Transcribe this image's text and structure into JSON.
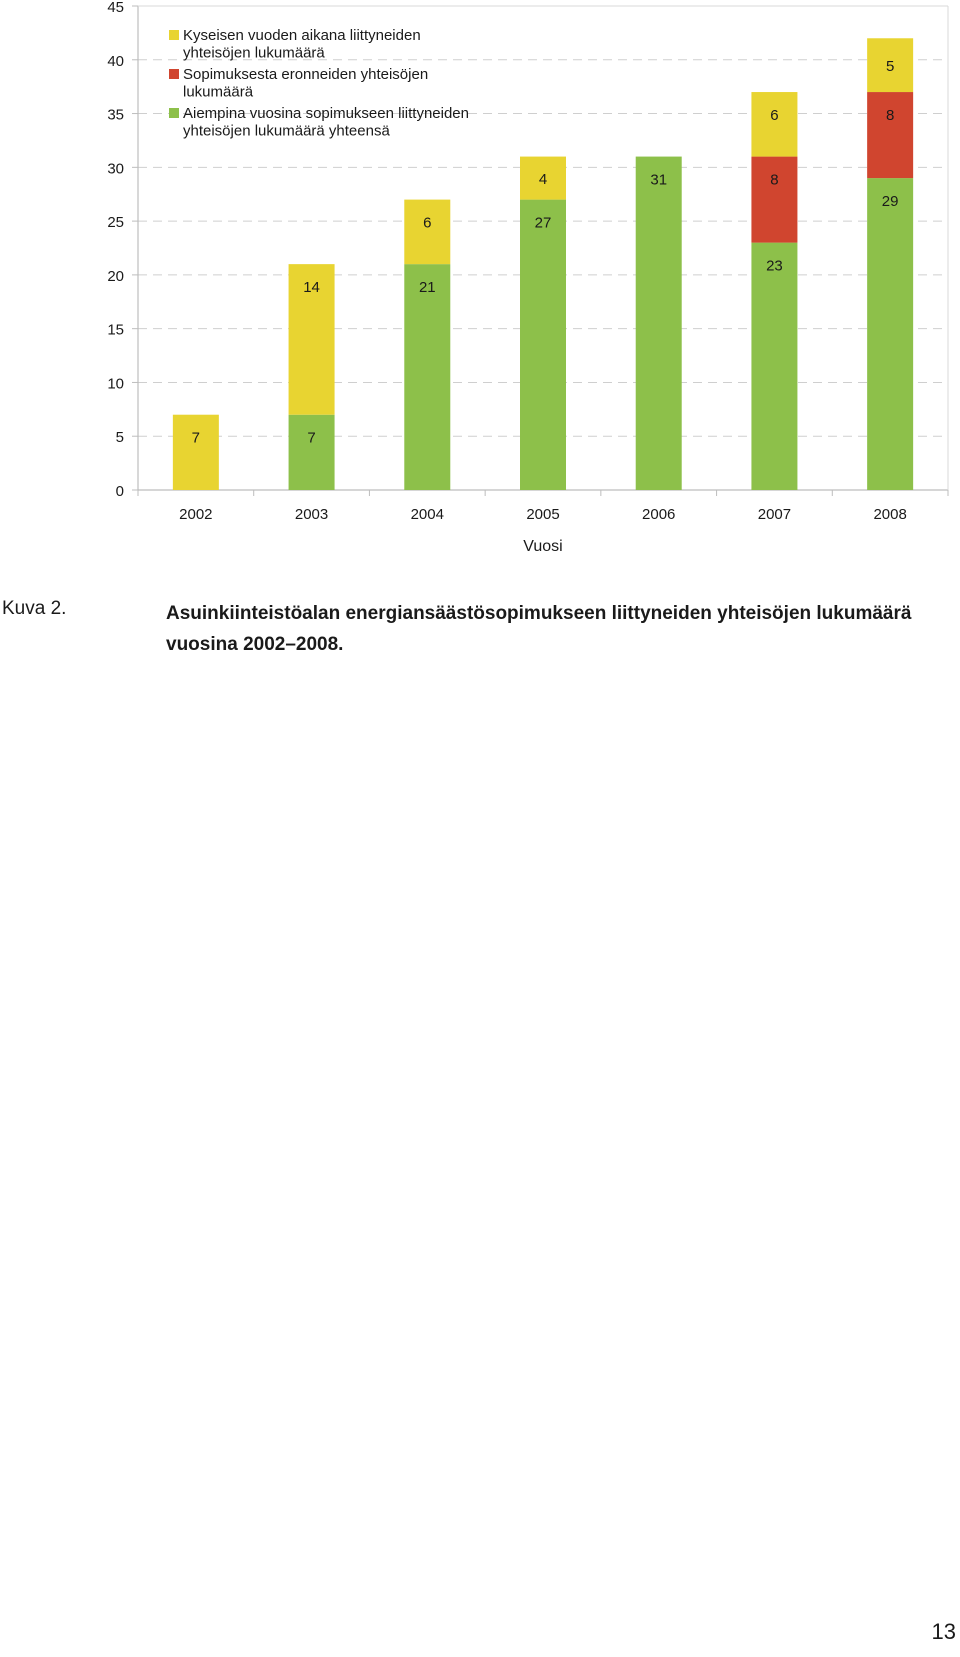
{
  "chart_data": {
    "type": "bar",
    "stacked": true,
    "title": "",
    "xlabel": "Vuosi",
    "ylabel": "",
    "ylim": [
      0,
      45
    ],
    "ytick_step": 5,
    "grid": true,
    "legend_position": "top-left",
    "categories": [
      "2002",
      "2003",
      "2004",
      "2005",
      "2006",
      "2007",
      "2008"
    ],
    "series": [
      {
        "name": "Aiempina vuosina sopimukseen liittyneiden yhteisöjen lukumäärä yhteensä",
        "color": "#8dc04a",
        "values": [
          0,
          7,
          21,
          27,
          31,
          23,
          29
        ]
      },
      {
        "name": "Sopimuksesta eronneiden yhteisöjen lukumäärä",
        "color": "#d0452f",
        "values": [
          0,
          0,
          0,
          0,
          0,
          8,
          8
        ]
      },
      {
        "name": "Kyseisen vuoden aikana liittyneiden yhteisöjen lukumäärä",
        "color": "#e8d431",
        "values": [
          7,
          14,
          6,
          4,
          0,
          6,
          5
        ]
      }
    ],
    "legend_order": [
      2,
      1,
      0
    ],
    "legend_lines": [
      [
        "Kyseisen vuoden aikana liittyneiden",
        "yhteisöjen lukumäärä"
      ],
      [
        "Sopimuksesta eronneiden yhteisöjen",
        "lukumäärä"
      ],
      [
        "Aiempina vuosina sopimukseen liittyneiden",
        "yhteisöjen lukumäärä yhteensä"
      ]
    ]
  },
  "caption": {
    "label": "Kuva 2.",
    "text": "Asuinkiinteistöalan energiansäästösopimukseen liittyneiden yhteisöjen lukumäärä vuosina 2002–2008."
  },
  "page_number": "13"
}
